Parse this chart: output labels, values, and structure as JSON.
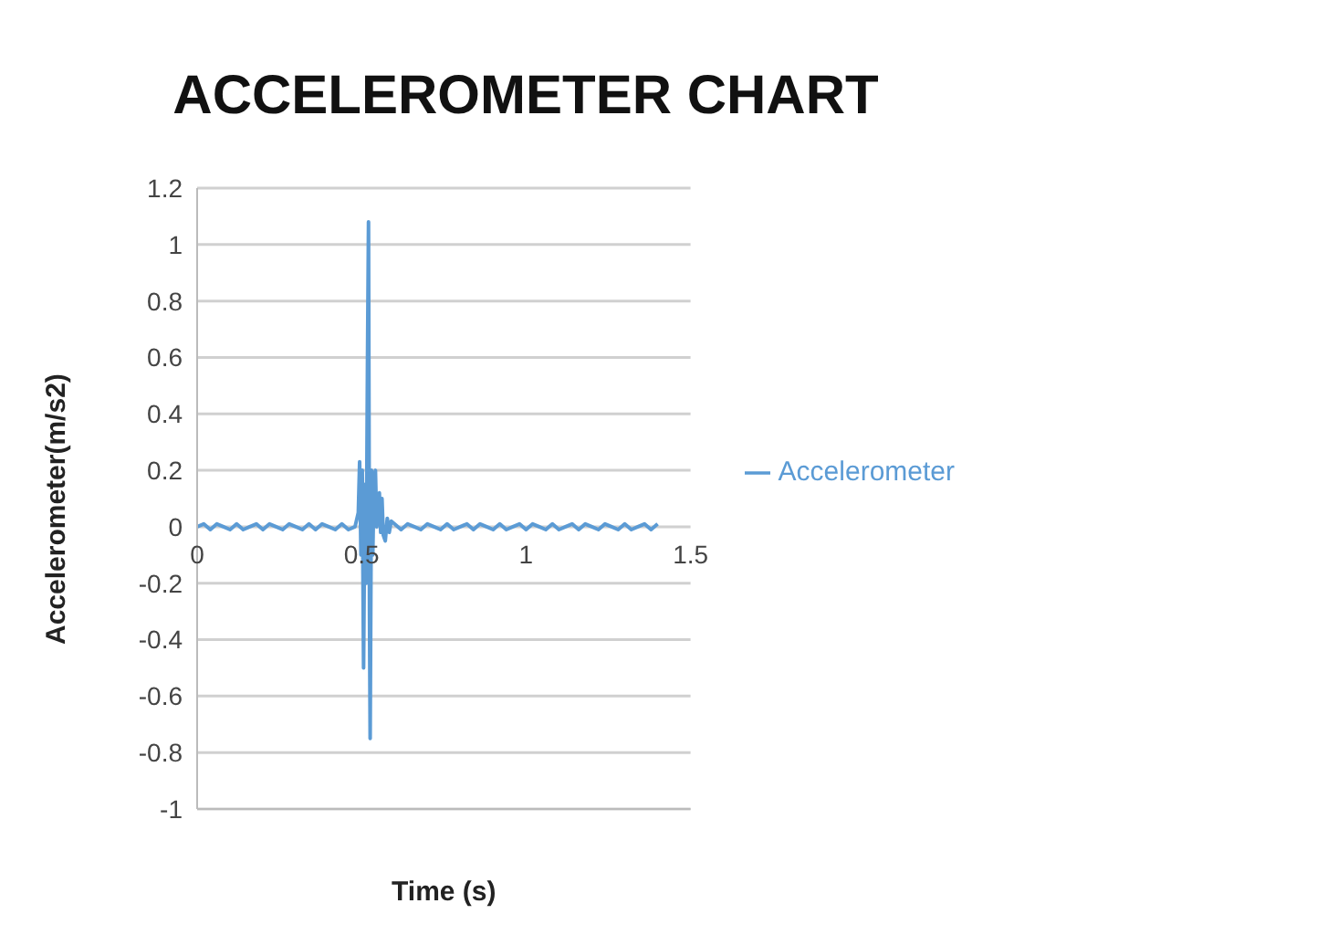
{
  "chart_data": {
    "type": "line",
    "title": "ACCELEROMETER CHART",
    "xlabel": "Time (s)",
    "ylabel": "Accelerometer(m/s2)",
    "xlim": [
      0,
      1.5
    ],
    "xticks": [
      0,
      0.5,
      1,
      1.5
    ],
    "ylim": [
      -1,
      1.2
    ],
    "yticks": [
      -1,
      -0.8,
      -0.6,
      -0.4,
      -0.2,
      0,
      0.2,
      0.4,
      0.6,
      0.8,
      1,
      1.2
    ],
    "grid": "y",
    "legend": "right",
    "marker": "none",
    "line_style": "solid",
    "x": [
      0,
      0.02,
      0.04,
      0.06,
      0.08,
      0.1,
      0.12,
      0.14,
      0.16,
      0.18,
      0.2,
      0.22,
      0.24,
      0.26,
      0.28,
      0.3,
      0.32,
      0.34,
      0.36,
      0.38,
      0.4,
      0.42,
      0.44,
      0.46,
      0.48,
      0.49,
      0.494,
      0.498,
      0.502,
      0.506,
      0.51,
      0.514,
      0.518,
      0.521,
      0.524,
      0.526,
      0.53,
      0.534,
      0.538,
      0.542,
      0.546,
      0.55,
      0.554,
      0.558,
      0.562,
      0.566,
      0.572,
      0.578,
      0.584,
      0.59,
      0.6,
      0.62,
      0.64,
      0.66,
      0.68,
      0.7,
      0.72,
      0.74,
      0.76,
      0.78,
      0.8,
      0.82,
      0.84,
      0.86,
      0.88,
      0.9,
      0.92,
      0.94,
      0.96,
      0.98,
      1,
      1.02,
      1.04,
      1.06,
      1.08,
      1.1,
      1.12,
      1.14,
      1.16,
      1.18,
      1.2,
      1.22,
      1.24,
      1.26,
      1.28,
      1.3,
      1.32,
      1.34,
      1.36,
      1.38,
      1.4
    ],
    "series": [
      {
        "name": "Accelerometer",
        "color": "#5b9bd5",
        "values": [
          0,
          0.01,
          -0.01,
          0.01,
          0,
          -0.01,
          0.01,
          -0.01,
          0,
          0.01,
          -0.01,
          0.01,
          0,
          -0.01,
          0.01,
          0,
          -0.01,
          0.01,
          -0.01,
          0.01,
          0,
          -0.01,
          0.01,
          -0.01,
          0,
          0.05,
          0.23,
          -0.1,
          0.2,
          -0.5,
          0.15,
          -0.2,
          0.6,
          1.08,
          -0.3,
          -0.75,
          0.2,
          -0.1,
          0.18,
          0.2,
          0,
          0.1,
          0.12,
          -0.02,
          0.1,
          -0.03,
          -0.05,
          0.03,
          -0.02,
          0.02,
          0.01,
          -0.01,
          0.01,
          0,
          -0.01,
          0.01,
          0,
          -0.01,
          0.01,
          -0.01,
          0,
          0.01,
          -0.01,
          0.01,
          0,
          -0.01,
          0.01,
          -0.01,
          0,
          0.01,
          -0.01,
          0.01,
          0,
          -0.01,
          0.01,
          -0.01,
          0,
          0.01,
          -0.01,
          0.01,
          0,
          -0.01,
          0.01,
          0,
          -0.01,
          0.01,
          -0.01,
          0,
          0.01,
          -0.01,
          0.01
        ]
      }
    ]
  }
}
